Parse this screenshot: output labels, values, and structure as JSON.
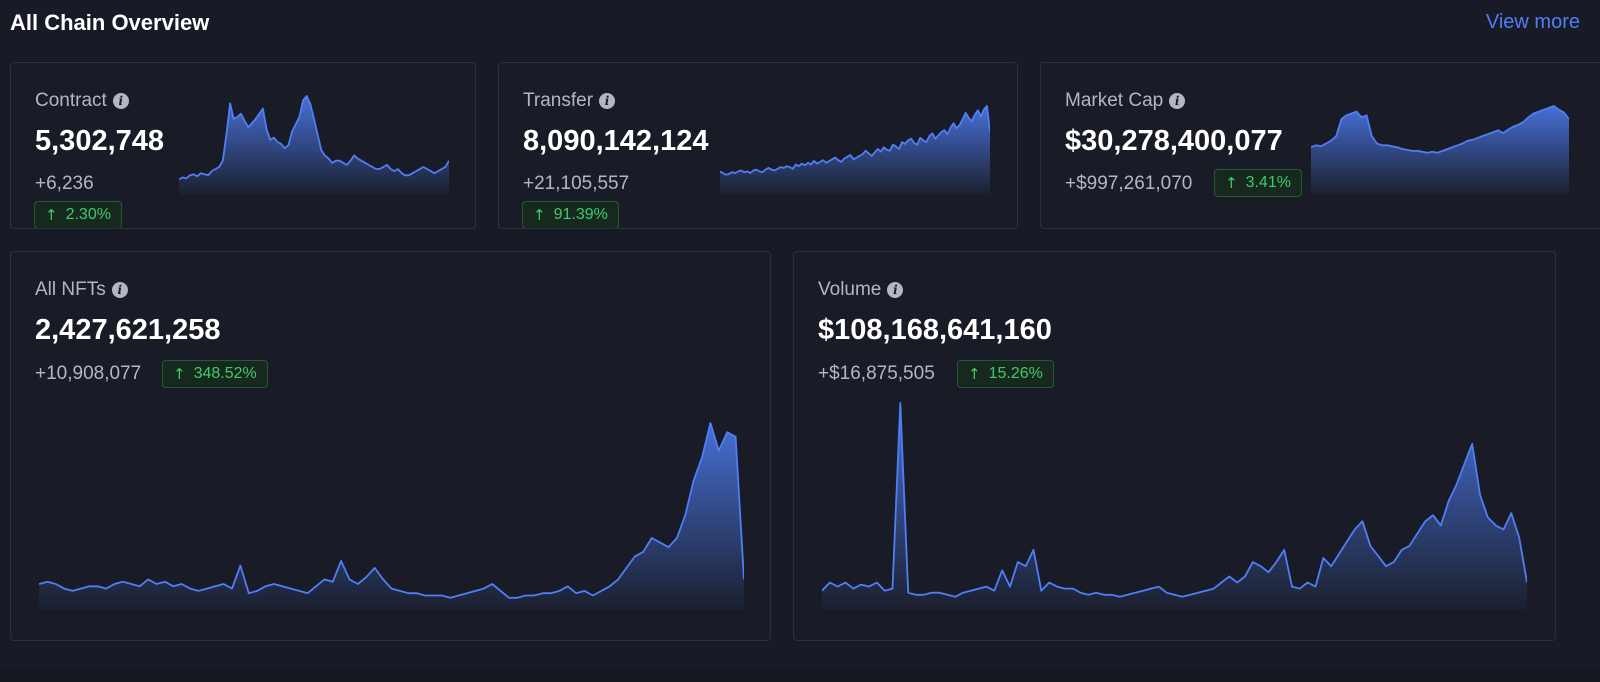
{
  "header": {
    "title": "All Chain Overview",
    "view_more": "View more"
  },
  "colors": {
    "accent": "#4f7ef6",
    "positive": "#3ccb6a",
    "background": "#181b25"
  },
  "cards": {
    "contract": {
      "label": "Contract",
      "value": "5,302,748",
      "delta": "+6,236",
      "change": "2.30%",
      "series": [
        12,
        14,
        13,
        16,
        17,
        15,
        18,
        17,
        16,
        20,
        22,
        24,
        30,
        55,
        85,
        70,
        72,
        75,
        68,
        62,
        66,
        70,
        75,
        80,
        60,
        50,
        52,
        48,
        46,
        42,
        45,
        58,
        65,
        72,
        88,
        92,
        84,
        70,
        55,
        40,
        35,
        32,
        28,
        30,
        30,
        28,
        26,
        30,
        35,
        32,
        30,
        28,
        26,
        24,
        22,
        22,
        24,
        26,
        22,
        20,
        22,
        18,
        16,
        16,
        18,
        20,
        22,
        24,
        22,
        20,
        18,
        20,
        22,
        24,
        30
      ]
    },
    "transfer": {
      "label": "Transfer",
      "value": "8,090,142,124",
      "delta": "+21,105,557",
      "change": "91.39%",
      "series": [
        24,
        22,
        20,
        21,
        23,
        22,
        24,
        25,
        23,
        24,
        22,
        25,
        26,
        24,
        23,
        26,
        28,
        26,
        25,
        27,
        29,
        28,
        30,
        29,
        27,
        32,
        30,
        33,
        31,
        34,
        32,
        36,
        33,
        35,
        37,
        34,
        36,
        38,
        40,
        37,
        35,
        39,
        41,
        43,
        38,
        40,
        42,
        44,
        48,
        45,
        42,
        46,
        50,
        47,
        52,
        49,
        48,
        55,
        53,
        50,
        58,
        56,
        60,
        62,
        57,
        55,
        63,
        60,
        58,
        65,
        68,
        62,
        66,
        70,
        72,
        67,
        75,
        80,
        74,
        78,
        85,
        92,
        86,
        82,
        90,
        95,
        88,
        96,
        100,
        70
      ]
    },
    "market_cap": {
      "label": "Market Cap",
      "value": "$30,278,400,077",
      "delta": "+$997,261,070",
      "change": "3.41%",
      "series": [
        48,
        50,
        49,
        52,
        55,
        60,
        78,
        82,
        84,
        86,
        80,
        82,
        60,
        52,
        50,
        50,
        49,
        48,
        46,
        45,
        44,
        44,
        43,
        42,
        43,
        42,
        44,
        46,
        48,
        50,
        52,
        55,
        56,
        58,
        60,
        62,
        64,
        66,
        63,
        67,
        70,
        72,
        75,
        80,
        84,
        86,
        88,
        90,
        92,
        88,
        85,
        78
      ]
    },
    "all_nfts": {
      "label": "All NFTs",
      "value": "2,427,621,258",
      "delta": "+10,908,077",
      "change": "348.52%",
      "series": [
        10,
        11,
        10,
        8,
        7,
        8,
        9,
        9,
        8,
        10,
        11,
        10,
        9,
        12,
        10,
        11,
        9,
        10,
        8,
        7,
        8,
        9,
        10,
        8,
        18,
        6,
        7,
        9,
        10,
        9,
        8,
        7,
        6,
        9,
        12,
        11,
        20,
        12,
        10,
        13,
        17,
        12,
        8,
        7,
        6,
        6,
        5,
        5,
        5,
        4,
        5,
        6,
        7,
        8,
        10,
        7,
        4,
        4,
        5,
        5,
        6,
        6,
        7,
        9,
        6,
        7,
        5,
        7,
        9,
        12,
        17,
        22,
        24,
        30,
        28,
        26,
        30,
        40,
        55,
        65,
        80,
        68,
        76,
        74,
        12
      ]
    },
    "volume": {
      "label": "Volume",
      "value": "$108,168,641,160",
      "delta": "+$16,875,505",
      "change": "15.26%",
      "series": [
        8,
        12,
        10,
        12,
        9,
        11,
        10,
        12,
        8,
        9,
        100,
        7,
        6,
        6,
        7,
        7,
        6,
        5,
        7,
        8,
        9,
        10,
        8,
        18,
        10,
        22,
        20,
        28,
        8,
        12,
        10,
        9,
        9,
        7,
        6,
        7,
        6,
        6,
        5,
        6,
        7,
        8,
        9,
        10,
        7,
        6,
        5,
        6,
        7,
        8,
        9,
        12,
        15,
        12,
        15,
        22,
        20,
        17,
        22,
        28,
        10,
        9,
        12,
        10,
        24,
        20,
        26,
        32,
        38,
        42,
        30,
        25,
        20,
        22,
        28,
        30,
        36,
        42,
        45,
        40,
        52,
        60,
        70,
        80,
        55,
        44,
        40,
        38,
        46,
        34,
        12
      ]
    }
  }
}
